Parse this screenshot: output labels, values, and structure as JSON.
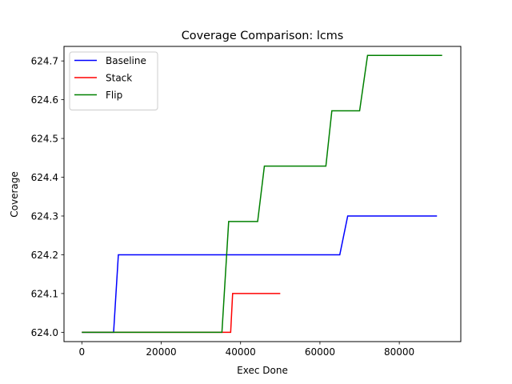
{
  "chart_data": {
    "type": "line",
    "title": "Coverage Comparison: lcms",
    "xlabel": "Exec Done",
    "ylabel": "Coverage",
    "xlim": [
      -4500,
      95500
    ],
    "ylim": [
      623.976,
      624.7375
    ],
    "x_ticks": [
      0,
      20000,
      40000,
      60000,
      80000
    ],
    "x_tick_labels": [
      "0",
      "20000",
      "40000",
      "60000",
      "80000"
    ],
    "y_ticks": [
      624.0,
      624.1,
      624.2,
      624.3,
      624.4,
      624.5,
      624.6,
      624.7
    ],
    "y_tick_labels": [
      "624.0",
      "624.1",
      "624.2",
      "624.3",
      "624.4",
      "624.5",
      "624.6",
      "624.7"
    ],
    "grid": false,
    "legend_position": "top-left",
    "series": [
      {
        "name": "Baseline",
        "color": "#0000ff",
        "points": [
          [
            0,
            624.0
          ],
          [
            8000,
            624.0
          ],
          [
            9200,
            624.2
          ],
          [
            65000,
            624.2
          ],
          [
            67000,
            624.3
          ],
          [
            89500,
            624.3
          ]
        ]
      },
      {
        "name": "Stack",
        "color": "#ff0000",
        "points": [
          [
            0,
            624.0
          ],
          [
            37500,
            624.0
          ],
          [
            38000,
            624.1
          ],
          [
            50000,
            624.1
          ]
        ]
      },
      {
        "name": "Flip",
        "color": "#008000",
        "points": [
          [
            0,
            624.0
          ],
          [
            35300,
            624.0
          ],
          [
            37000,
            624.2857
          ],
          [
            44300,
            624.2857
          ],
          [
            46000,
            624.4286
          ],
          [
            61500,
            624.4286
          ],
          [
            63000,
            624.5714
          ],
          [
            70000,
            624.5714
          ],
          [
            72000,
            624.7143
          ],
          [
            90800,
            624.7143
          ]
        ]
      }
    ]
  }
}
